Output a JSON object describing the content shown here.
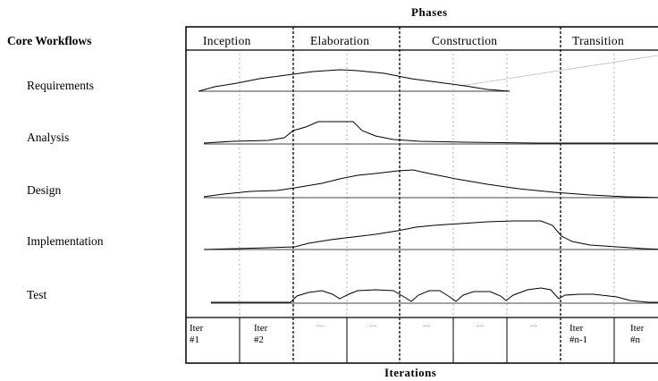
{
  "diagram": {
    "phases_title": "Phases",
    "core_workflows_title": "Core Workflows",
    "iterations_title": "Iterations",
    "phases": [
      {
        "label": "Inception"
      },
      {
        "label": "Elaboration"
      },
      {
        "label": "Construction"
      },
      {
        "label": "Transition"
      }
    ],
    "workflows": [
      {
        "label": "Requirements"
      },
      {
        "label": "Analysis"
      },
      {
        "label": "Design"
      },
      {
        "label": "Implementation"
      },
      {
        "label": "Test"
      }
    ],
    "iterations": [
      {
        "line1": "Iter",
        "line2": "#1"
      },
      {
        "line1": "Iter",
        "line2": "#2"
      },
      {
        "line1": "...",
        "line2": ""
      },
      {
        "line1": "...",
        "line2": ""
      },
      {
        "line1": "...",
        "line2": ""
      },
      {
        "line1": "...",
        "line2": ""
      },
      {
        "line1": "...",
        "line2": ""
      },
      {
        "line1": "Iter",
        "line2": "#n-1"
      },
      {
        "line1": "Iter",
        "line2": "#n"
      }
    ]
  }
}
